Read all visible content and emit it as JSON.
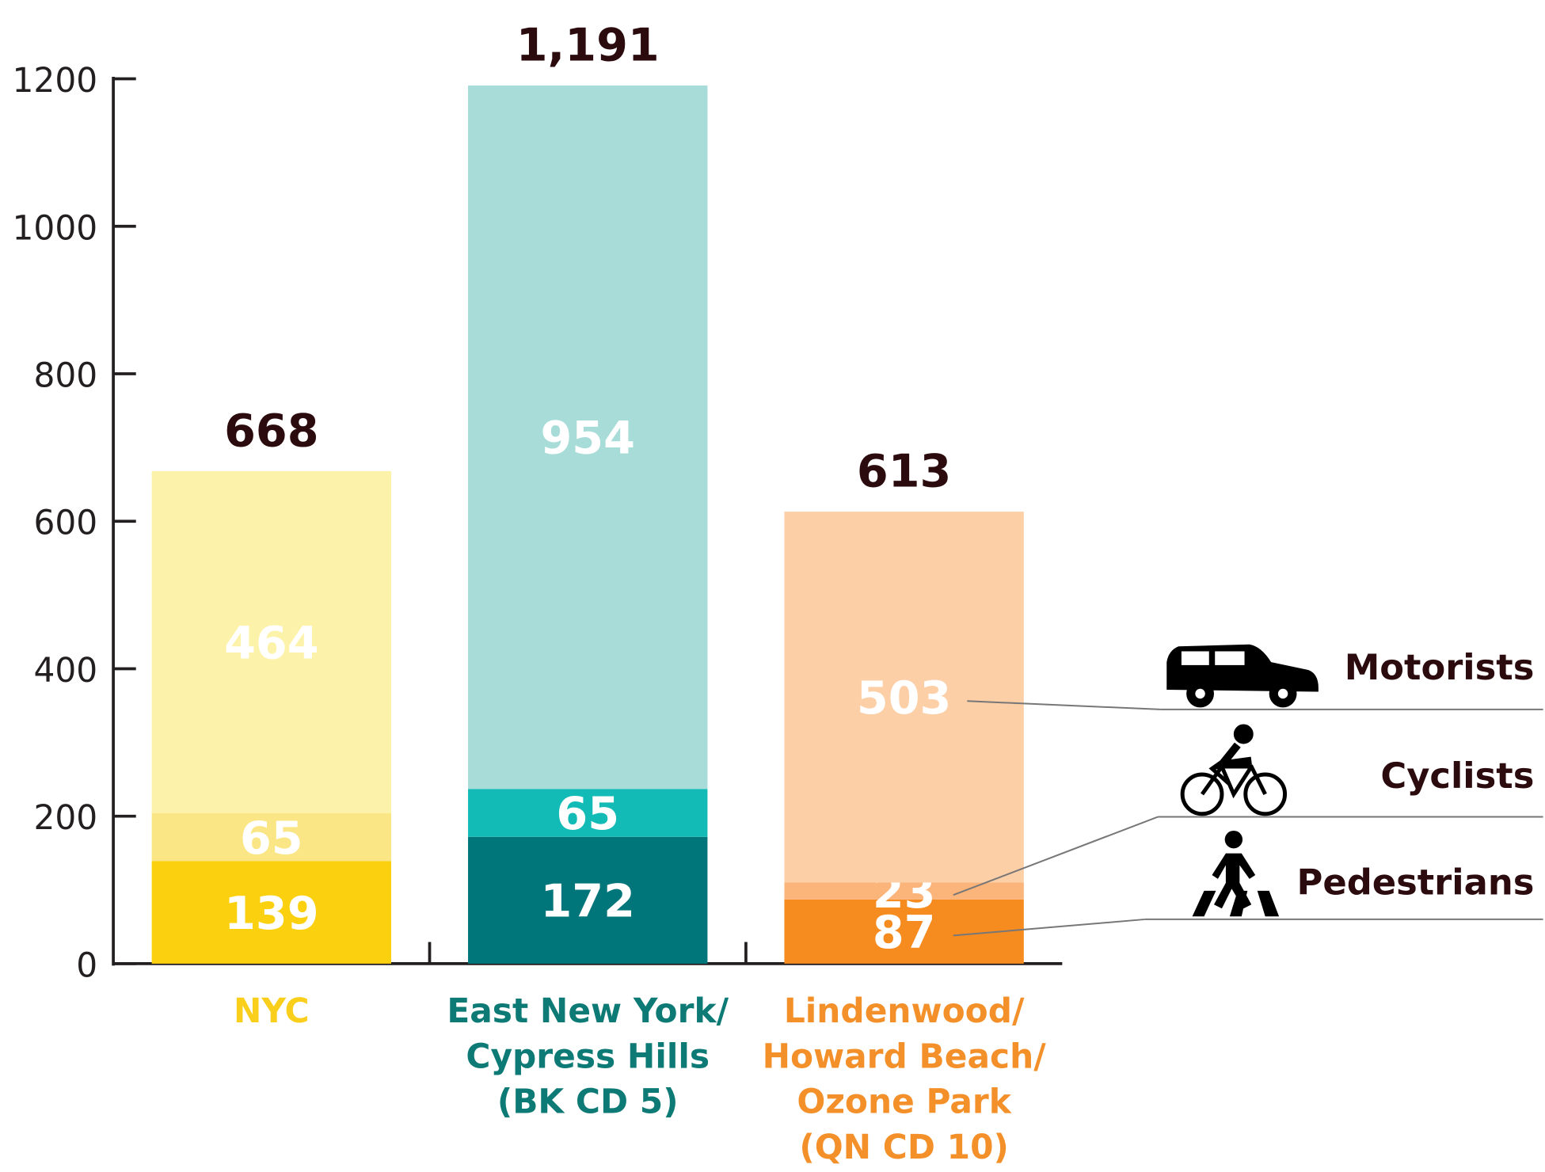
{
  "chart_data": {
    "type": "bar",
    "stacked": true,
    "categories": [
      [
        "NYC"
      ],
      [
        "East New York/",
        "Cypress Hills",
        "(BK CD 5)"
      ],
      [
        "Lindenwood/",
        "Howard Beach/",
        "Ozone Park",
        "(QN CD 10)"
      ]
    ],
    "category_colors": [
      "#f9cf1c",
      "#0e7a75",
      "#f4902a"
    ],
    "series": [
      {
        "name": "Pedestrians",
        "colors": [
          "#fbd00f",
          "#00767a",
          "#f68b1f"
        ],
        "values": [
          139,
          172,
          87
        ]
      },
      {
        "name": "Cyclists",
        "colors": [
          "#fae684",
          "#13bbb6",
          "#fbb47a"
        ],
        "values": [
          65,
          65,
          23
        ]
      },
      {
        "name": "Motorists",
        "colors": [
          "#fdf2aa",
          "#a8dcd9",
          "#fdcfa7"
        ],
        "values": [
          464,
          954,
          503
        ]
      }
    ],
    "totals": [
      668,
      1191,
      613
    ],
    "total_labels": [
      "668",
      "1,191",
      "613"
    ],
    "ylim": [
      0,
      1200
    ],
    "yticks": [
      0,
      200,
      400,
      600,
      800,
      1000,
      1200
    ]
  }
}
